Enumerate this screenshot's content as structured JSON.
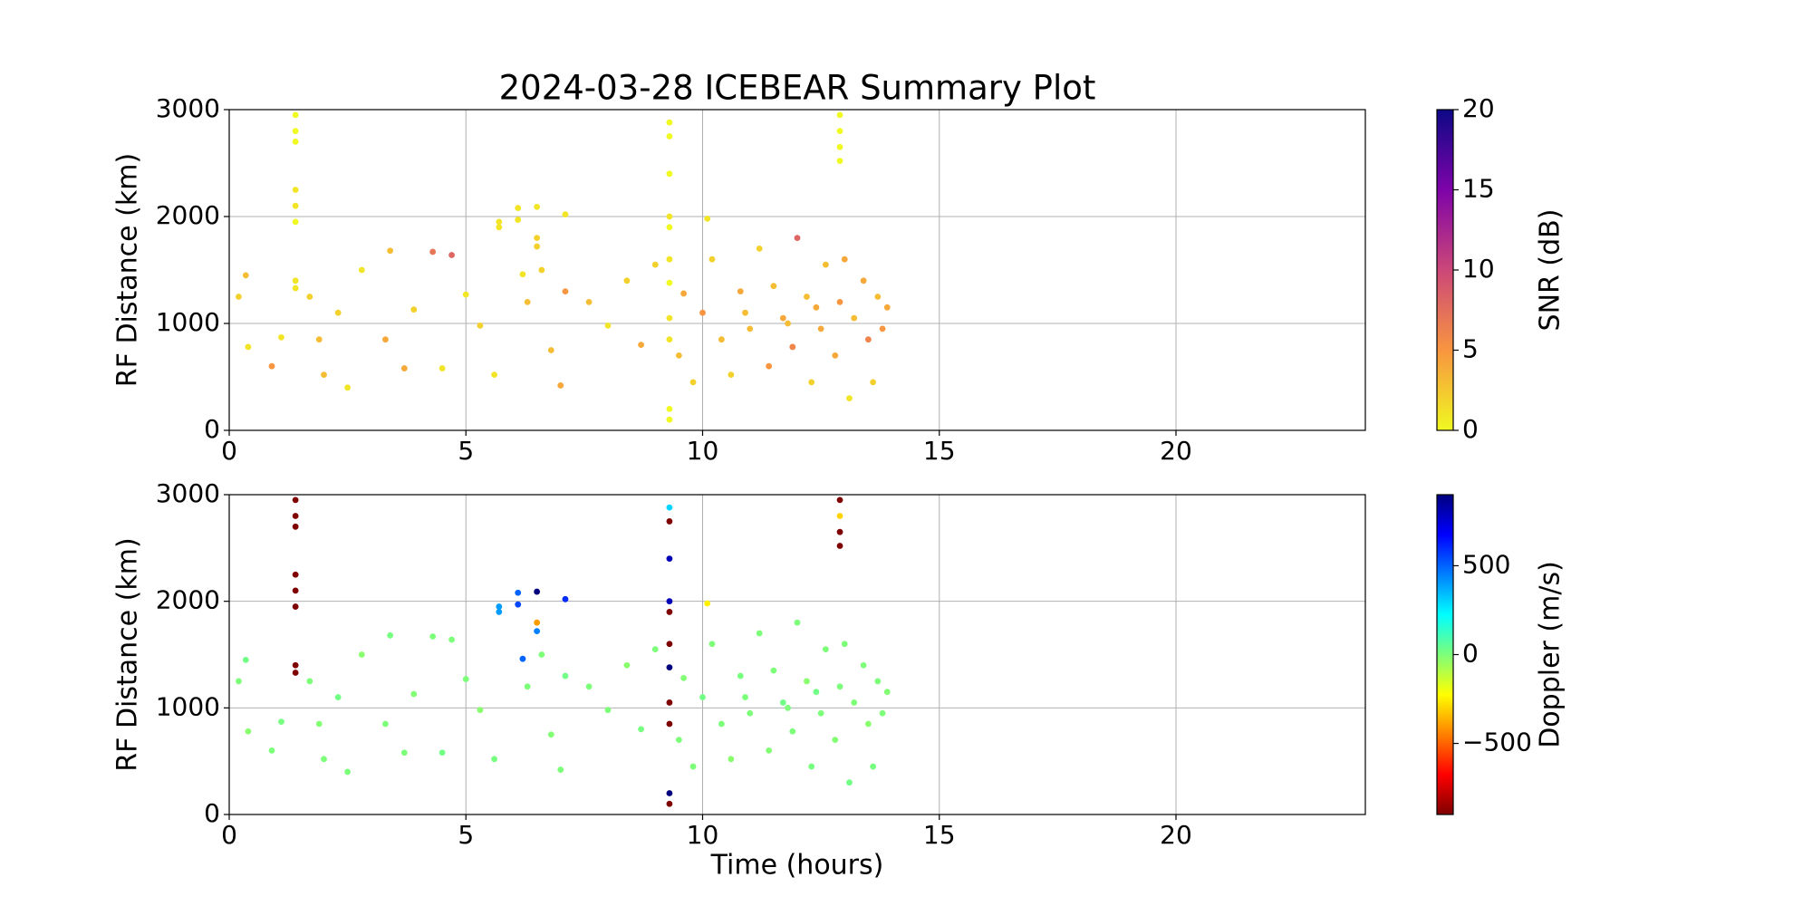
{
  "chart_data": [
    {
      "type": "scatter",
      "title": "2024-03-28 ICEBEAR Summary Plot",
      "ylabel": "RF Distance (km)",
      "xlim": [
        0,
        24
      ],
      "xticks": [
        0,
        5,
        10,
        15,
        20
      ],
      "ylim": [
        0,
        3000
      ],
      "yticks": [
        0,
        1000,
        2000,
        3000
      ],
      "grid": true,
      "colormap": "plasma_r",
      "colorbar_label": "SNR (dB)",
      "clim": [
        0,
        20
      ],
      "cticks": [
        0,
        5,
        10,
        15,
        20
      ],
      "x": [
        1.4,
        1.4,
        1.4,
        1.4,
        1.4,
        1.4,
        1.4,
        1.4,
        9.3,
        9.3,
        9.3,
        9.3,
        9.3,
        9.3,
        9.3,
        9.3,
        9.3,
        9.3,
        9.3,
        12.9,
        12.9,
        12.9,
        12.9,
        5.7,
        5.7,
        6.1,
        6.1,
        6.5,
        6.5,
        6.5,
        7.1,
        10.1,
        6.2,
        0.2,
        0.35,
        0.4,
        0.9,
        1.1,
        1.7,
        1.9,
        2.0,
        2.3,
        2.5,
        2.8,
        3.3,
        3.4,
        3.7,
        3.9,
        4.3,
        4.5,
        4.7,
        5.0,
        5.3,
        5.6,
        6.3,
        6.6,
        6.8,
        7.0,
        7.1,
        7.6,
        8.0,
        8.4,
        8.7,
        9.0,
        9.5,
        9.6,
        9.8,
        10.0,
        10.2,
        10.4,
        10.6,
        10.8,
        11.0,
        11.2,
        11.4,
        11.5,
        11.7,
        11.9,
        12.0,
        12.2,
        12.3,
        12.5,
        12.6,
        12.8,
        12.9,
        13.1,
        13.2,
        13.4,
        13.5,
        13.6,
        13.7,
        13.8,
        13.9,
        11.8,
        12.4,
        10.9,
        13.0
      ],
      "y": [
        2950,
        2800,
        2700,
        2250,
        2100,
        1950,
        1400,
        1330,
        2880,
        2750,
        2400,
        2000,
        1900,
        1600,
        1380,
        1050,
        850,
        200,
        100,
        2950,
        2800,
        2650,
        2520,
        1950,
        1900,
        2080,
        1970,
        2090,
        1800,
        1720,
        2020,
        1980,
        1460,
        1250,
        1450,
        780,
        600,
        870,
        1250,
        850,
        520,
        1100,
        400,
        1500,
        850,
        1680,
        580,
        1130,
        1670,
        580,
        1640,
        1270,
        980,
        520,
        1200,
        1500,
        750,
        420,
        1300,
        1200,
        980,
        1400,
        800,
        1550,
        700,
        1280,
        450,
        1100,
        1600,
        850,
        520,
        1300,
        950,
        1700,
        600,
        1350,
        1050,
        780,
        1800,
        1250,
        450,
        950,
        1550,
        700,
        1200,
        300,
        1050,
        1400,
        850,
        450,
        1250,
        950,
        1150,
        1000,
        1150,
        1100,
        1600
      ],
      "c": [
        0,
        0,
        0,
        1,
        1,
        0,
        1,
        1,
        0,
        0,
        0,
        1,
        0,
        1,
        0,
        1,
        1,
        0,
        0,
        0,
        0,
        0,
        0,
        1,
        1,
        1,
        1,
        1,
        2,
        2,
        1,
        1,
        1,
        2,
        3,
        1,
        5,
        1,
        2,
        3,
        3,
        2,
        1,
        1,
        4,
        3,
        4,
        2,
        7,
        1,
        8,
        1,
        2,
        1,
        3,
        2,
        3,
        4,
        5,
        3,
        1,
        2,
        4,
        2,
        3,
        4,
        2,
        5,
        2,
        3,
        2,
        4,
        3,
        2,
        5,
        3,
        4,
        6,
        8,
        3,
        2,
        4,
        3,
        4,
        5,
        1,
        3,
        4,
        6,
        2,
        3,
        5,
        4,
        3,
        4,
        3,
        4
      ]
    },
    {
      "type": "scatter",
      "ylabel": "RF Distance (km)",
      "xlabel": "Time (hours)",
      "xlim": [
        0,
        24
      ],
      "xticks": [
        0,
        5,
        10,
        15,
        20
      ],
      "ylim": [
        0,
        3000
      ],
      "yticks": [
        0,
        1000,
        2000,
        3000
      ],
      "grid": true,
      "colormap": "jet_r",
      "colorbar_label": "Doppler (m/s)",
      "clim": [
        -900,
        900
      ],
      "cticks": [
        {
          "value": -500,
          "label": "−500"
        },
        0,
        500
      ],
      "x": [
        1.4,
        1.4,
        1.4,
        1.4,
        1.4,
        1.4,
        1.4,
        1.4,
        9.3,
        9.3,
        9.3,
        9.3,
        9.3,
        9.3,
        9.3,
        9.3,
        9.3,
        9.3,
        9.3,
        12.9,
        12.9,
        12.9,
        12.9,
        5.7,
        5.7,
        6.1,
        6.1,
        6.5,
        6.5,
        6.5,
        7.1,
        10.1,
        6.2,
        0.2,
        0.35,
        0.4,
        0.9,
        1.1,
        1.7,
        1.9,
        2.0,
        2.3,
        2.5,
        2.8,
        3.3,
        3.4,
        3.7,
        3.9,
        4.3,
        4.5,
        4.7,
        5.0,
        5.3,
        5.6,
        6.3,
        6.6,
        6.8,
        7.0,
        7.1,
        7.6,
        8.0,
        8.4,
        8.7,
        9.0,
        9.5,
        9.6,
        9.8,
        10.0,
        10.2,
        10.4,
        10.6,
        10.8,
        11.0,
        11.2,
        11.4,
        11.5,
        11.7,
        11.9,
        12.0,
        12.2,
        12.3,
        12.5,
        12.6,
        12.8,
        12.9,
        13.1,
        13.2,
        13.4,
        13.5,
        13.6,
        13.7,
        13.8,
        13.9,
        11.8,
        12.4,
        10.9,
        13.0
      ],
      "y": [
        2950,
        2800,
        2700,
        2250,
        2100,
        1950,
        1400,
        1330,
        2880,
        2750,
        2400,
        2000,
        1900,
        1600,
        1380,
        1050,
        850,
        200,
        100,
        2950,
        2800,
        2650,
        2520,
        1950,
        1900,
        2080,
        1970,
        2090,
        1800,
        1720,
        2020,
        1980,
        1460,
        1250,
        1450,
        780,
        600,
        870,
        1250,
        850,
        520,
        1100,
        400,
        1500,
        850,
        1680,
        580,
        1130,
        1670,
        580,
        1640,
        1270,
        980,
        520,
        1200,
        1500,
        750,
        420,
        1300,
        1200,
        980,
        1400,
        800,
        1550,
        700,
        1280,
        450,
        1100,
        1600,
        850,
        520,
        1300,
        950,
        1700,
        600,
        1350,
        1050,
        780,
        1800,
        1250,
        450,
        950,
        1550,
        700,
        1200,
        300,
        1050,
        1400,
        850,
        450,
        1250,
        950,
        1150,
        1000,
        1150,
        1100,
        1600
      ],
      "c": [
        -900,
        -900,
        -900,
        -900,
        -900,
        -900,
        -900,
        -900,
        300,
        -900,
        800,
        800,
        -900,
        -900,
        900,
        -900,
        -900,
        900,
        -900,
        -900,
        -300,
        -900,
        -900,
        400,
        400,
        500,
        550,
        900,
        -400,
        450,
        600,
        -250,
        500,
        0,
        20,
        -20,
        0,
        10,
        0,
        -10,
        0,
        20,
        0,
        -20,
        0,
        10,
        0,
        -10,
        0,
        20,
        0,
        0,
        -20,
        10,
        0,
        0,
        -10,
        0,
        20,
        0,
        0,
        -20,
        10,
        0,
        0,
        -10,
        0,
        20,
        0,
        0,
        -20,
        10,
        0,
        0,
        -10,
        0,
        20,
        0,
        0,
        -20,
        10,
        0,
        0,
        -10,
        0,
        20,
        0,
        0,
        -20,
        10,
        0,
        0,
        -10,
        0,
        20,
        0,
        0
      ]
    }
  ]
}
